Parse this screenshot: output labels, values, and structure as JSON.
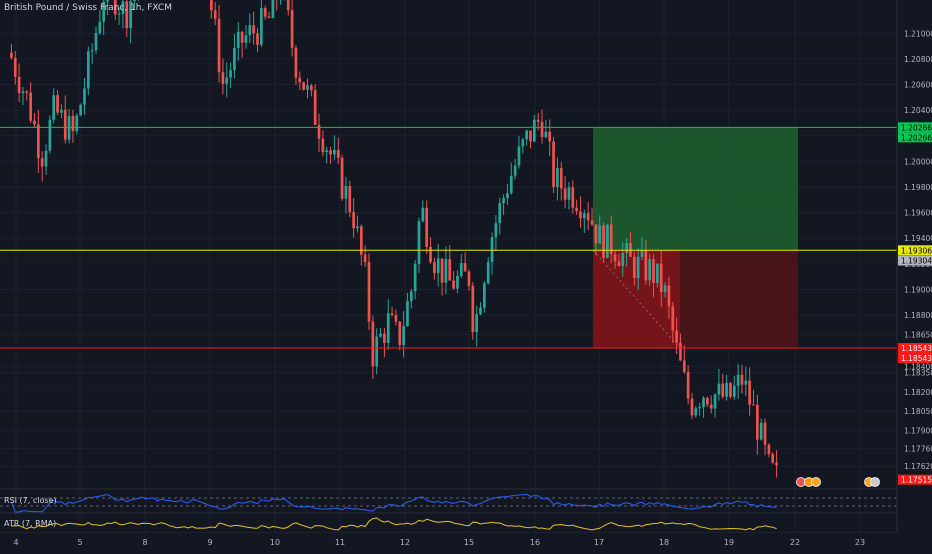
{
  "chart_data": {
    "type": "candlestick",
    "title": "British Pound / Swiss Franc, 1h, FXCM",
    "x_ticks": [
      {
        "day": 4,
        "label": "4"
      },
      {
        "day": 5,
        "label": "5"
      },
      {
        "day": 8,
        "label": "8"
      },
      {
        "day": 9,
        "label": "9"
      },
      {
        "day": 10,
        "label": "10"
      },
      {
        "day": 11,
        "label": "11"
      },
      {
        "day": 12,
        "label": "12"
      },
      {
        "day": 15,
        "label": "15"
      },
      {
        "day": 16,
        "label": "16"
      },
      {
        "day": 17,
        "label": "17"
      },
      {
        "day": 18,
        "label": "18"
      },
      {
        "day": 19,
        "label": "19"
      },
      {
        "day": 22,
        "label": "22"
      },
      {
        "day": 23,
        "label": "23"
      }
    ],
    "y_ticks": [
      "1.21000",
      "1.20800",
      "1.20600",
      "1.20400",
      "1.20200",
      "1.20000",
      "1.19800",
      "1.19600",
      "1.19400",
      "1.19200",
      "1.19000",
      "1.18800",
      "1.18650",
      "1.18400",
      "1.18350",
      "1.18200",
      "1.18050",
      "1.17900",
      "1.17760",
      "1.17620"
    ],
    "y_tick_values": [
      1.21,
      1.208,
      1.206,
      1.204,
      1.202,
      1.2,
      1.198,
      1.196,
      1.194,
      1.192,
      1.19,
      1.188,
      1.1865,
      1.184,
      1.1835,
      1.182,
      1.1805,
      1.179,
      1.1776,
      1.1762
    ],
    "ylim": [
      1.1745,
      1.2126
    ],
    "levels": [
      {
        "name": "take-profit",
        "value": 1.20266,
        "label": "1.20266",
        "color": "#00c853"
      },
      {
        "name": "entry",
        "value": 1.19306,
        "label": "1.19306",
        "color": "#e6e600"
      },
      {
        "name": "stop-loss",
        "value": 1.18543,
        "label": "1.18543",
        "color": "#ff1a1a"
      }
    ],
    "price_labels": [
      {
        "value": 1.20266,
        "label": "1.20266",
        "bg": "#00c853",
        "fg": "#000000"
      },
      {
        "value": 1.20266,
        "label": "1.20266",
        "bg": "#00c853",
        "fg": "#000000"
      },
      {
        "value": 1.19306,
        "label": "1.19306",
        "bg": "#e6e600",
        "fg": "#000000"
      },
      {
        "value": 1.19304,
        "label": "1.19304",
        "bg": "#b2b5be",
        "fg": "#000000"
      },
      {
        "value": 1.18543,
        "label": "1.18543",
        "bg": "#ff1a1a",
        "fg": "#ffffff"
      },
      {
        "value": 1.18543,
        "label": "1.18543",
        "bg": "#ff1a1a",
        "fg": "#ffffff"
      },
      {
        "value": 1.17515,
        "label": "1.17515",
        "bg": "#ff1a1a",
        "fg": "#ffffff"
      }
    ],
    "position": {
      "entry": 1.19306,
      "target": 1.20266,
      "stop": 1.18543,
      "start_day": 17.0,
      "end_day": 20.0
    },
    "anchors": [
      [
        3.9,
        1.2085
      ],
      [
        4.2,
        1.2045
      ],
      [
        4.4,
        1.2005
      ],
      [
        4.6,
        1.204
      ],
      [
        4.9,
        1.202
      ],
      [
        5.2,
        1.209
      ],
      [
        5.4,
        1.214
      ],
      [
        5.7,
        1.2115
      ],
      [
        6.0,
        1.216
      ],
      [
        8.9,
        1.216
      ],
      [
        9.2,
        1.206
      ],
      [
        9.5,
        1.2095
      ],
      [
        9.9,
        1.211
      ],
      [
        10.1,
        1.214
      ],
      [
        10.3,
        1.208
      ],
      [
        10.7,
        1.2025
      ],
      [
        10.9,
        1.2
      ],
      [
        11.2,
        1.196
      ],
      [
        11.4,
        1.1905
      ],
      [
        11.5,
        1.185
      ],
      [
        11.75,
        1.1875
      ],
      [
        11.9,
        1.186
      ],
      [
        12.1,
        1.19
      ],
      [
        12.25,
        1.1965
      ],
      [
        12.45,
        1.1925
      ],
      [
        12.7,
        1.1905
      ],
      [
        13.0,
        1.191
      ],
      [
        14.9,
        1.1895
      ],
      [
        15.1,
        1.1875
      ],
      [
        15.3,
        1.1935
      ],
      [
        15.6,
        1.1985
      ],
      [
        15.85,
        1.2015
      ],
      [
        16.1,
        1.2035
      ],
      [
        16.3,
        1.1985
      ],
      [
        16.6,
        1.1975
      ],
      [
        16.8,
        1.1965
      ],
      [
        17.0,
        1.194
      ],
      [
        17.2,
        1.1935
      ],
      [
        17.5,
        1.192
      ],
      [
        17.8,
        1.1915
      ],
      [
        18.0,
        1.19
      ],
      [
        18.2,
        1.185
      ],
      [
        18.4,
        1.181
      ],
      [
        18.6,
        1.182
      ],
      [
        19.0,
        1.1815
      ],
      [
        19.2,
        1.183
      ],
      [
        19.4,
        1.18
      ],
      [
        19.6,
        1.176
      ],
      [
        19.75,
        1.17515
      ]
    ],
    "candle_count": 200,
    "colors": {
      "up": "#26a69a",
      "down": "#ef5350",
      "background": "#131722",
      "target_zone": "#1e5a2e",
      "stop_zone_left": "#7a1419",
      "stop_zone_right": "#4a1418"
    },
    "indicators": [
      {
        "name": "RSI (7, close)",
        "label": "RSI (7, close)",
        "color": "#2962ff",
        "levels": [
          70,
          30
        ],
        "ylim": [
          0,
          100
        ]
      },
      {
        "name": "ATR (7, RMA)",
        "label": "ATR (7, RMA)",
        "color": "#e6c229"
      }
    ]
  }
}
